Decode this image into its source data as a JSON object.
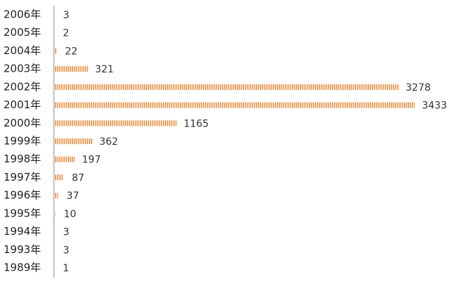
{
  "chart_data": {
    "type": "bar",
    "orientation": "horizontal",
    "color": "#f4a15d",
    "categories": [
      "2006年",
      "2005年",
      "2004年",
      "2003年",
      "2002年",
      "2001年",
      "2000年",
      "1999年",
      "1998年",
      "1997年",
      "1996年",
      "1995年",
      "1994年",
      "1993年",
      "1989年"
    ],
    "values": [
      3,
      2,
      22,
      321,
      3278,
      3433,
      1165,
      362,
      197,
      87,
      37,
      10,
      3,
      3,
      1
    ]
  }
}
